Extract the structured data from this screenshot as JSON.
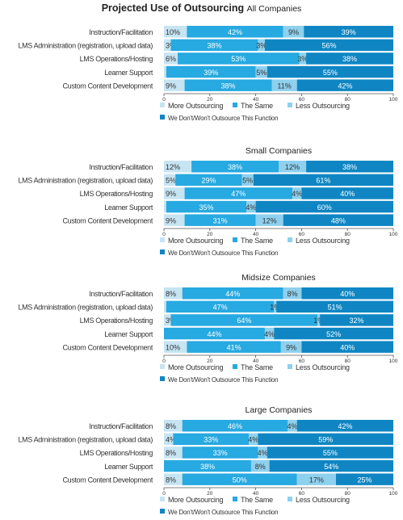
{
  "title": {
    "main": "Projected Use of Outsourcing",
    "sub": "All Companies"
  },
  "legend": {
    "items": [
      "More Outsourcing",
      "The Same",
      "Less Outsourcing",
      "We Don't/Won't Outsource This Function"
    ],
    "colors": [
      "#c6e4f2",
      "#27a9e1",
      "#8ed0ee",
      "#0f86c3"
    ]
  },
  "chart_data": [
    {
      "type": "bar",
      "orientation": "horizontal",
      "stacked": true,
      "title": "",
      "categories": [
        "Instruction/Facilitation",
        "LMS Administration (registration, upload data)",
        "LMS Operations/Hosting",
        "Learner Support",
        "Custom Content Development"
      ],
      "series": [
        {
          "name": "More Outsourcing",
          "values": [
            10,
            3,
            6,
            1,
            9
          ]
        },
        {
          "name": "The Same",
          "values": [
            42,
            38,
            53,
            39,
            38
          ]
        },
        {
          "name": "Less Outsourcing",
          "values": [
            9,
            3,
            3,
            5,
            11
          ]
        },
        {
          "name": "We Don't/Won't Outsource This Function",
          "values": [
            39,
            56,
            38,
            55,
            42
          ]
        }
      ],
      "xlim": [
        0,
        100
      ],
      "xticks": [
        0,
        20,
        40,
        60,
        80,
        100
      ]
    },
    {
      "type": "bar",
      "orientation": "horizontal",
      "stacked": true,
      "title": "Small Companies",
      "categories": [
        "Instruction/Facilitation",
        "LMS Administration (registration, upload data)",
        "LMS Operations/Hosting",
        "Learner Support",
        "Custom Content Development"
      ],
      "series": [
        {
          "name": "More Outsourcing",
          "values": [
            12,
            5,
            9,
            1,
            9
          ]
        },
        {
          "name": "The Same",
          "values": [
            38,
            29,
            47,
            35,
            31
          ]
        },
        {
          "name": "Less Outsourcing",
          "values": [
            12,
            5,
            4,
            4,
            12
          ]
        },
        {
          "name": "We Don't/Won't Outsource This Function",
          "values": [
            38,
            61,
            40,
            60,
            48
          ]
        }
      ],
      "xlim": [
        0,
        100
      ],
      "xticks": [
        0,
        20,
        40,
        60,
        80,
        100
      ]
    },
    {
      "type": "bar",
      "orientation": "horizontal",
      "stacked": true,
      "title": "Midsize Companies",
      "categories": [
        "Instruction/Facilitation",
        "LMS Administration (registration, upload data)",
        "LMS Operations/Hosting",
        "Learner Support",
        "Custom Content Development"
      ],
      "series": [
        {
          "name": "More Outsourcing",
          "values": [
            8,
            1,
            3,
            0,
            10
          ]
        },
        {
          "name": "The Same",
          "values": [
            44,
            47,
            64,
            44,
            41
          ]
        },
        {
          "name": "Less Outsourcing",
          "values": [
            8,
            1,
            1,
            4,
            9
          ]
        },
        {
          "name": "We Don't/Won't Outsource This Function",
          "values": [
            40,
            51,
            32,
            52,
            40
          ]
        }
      ],
      "xlim": [
        0,
        100
      ],
      "xticks": [
        0,
        20,
        40,
        60,
        80,
        100
      ]
    },
    {
      "type": "bar",
      "orientation": "horizontal",
      "stacked": true,
      "title": "Large Companies",
      "categories": [
        "Instruction/Facilitation",
        "LMS Administration (registration, upload data)",
        "LMS Operations/Hosting",
        "Learner Support",
        "Custom Content Development"
      ],
      "series": [
        {
          "name": "More Outsourcing",
          "values": [
            8,
            4,
            8,
            0,
            8
          ]
        },
        {
          "name": "The Same",
          "values": [
            46,
            33,
            33,
            38,
            50
          ]
        },
        {
          "name": "Less Outsourcing",
          "values": [
            4,
            4,
            4,
            8,
            17
          ]
        },
        {
          "name": "We Don't/Won't Outsource This Function",
          "values": [
            42,
            59,
            55,
            54,
            25
          ]
        }
      ],
      "xlim": [
        0,
        100
      ],
      "xticks": [
        0,
        20,
        40,
        60,
        80,
        100
      ]
    }
  ]
}
